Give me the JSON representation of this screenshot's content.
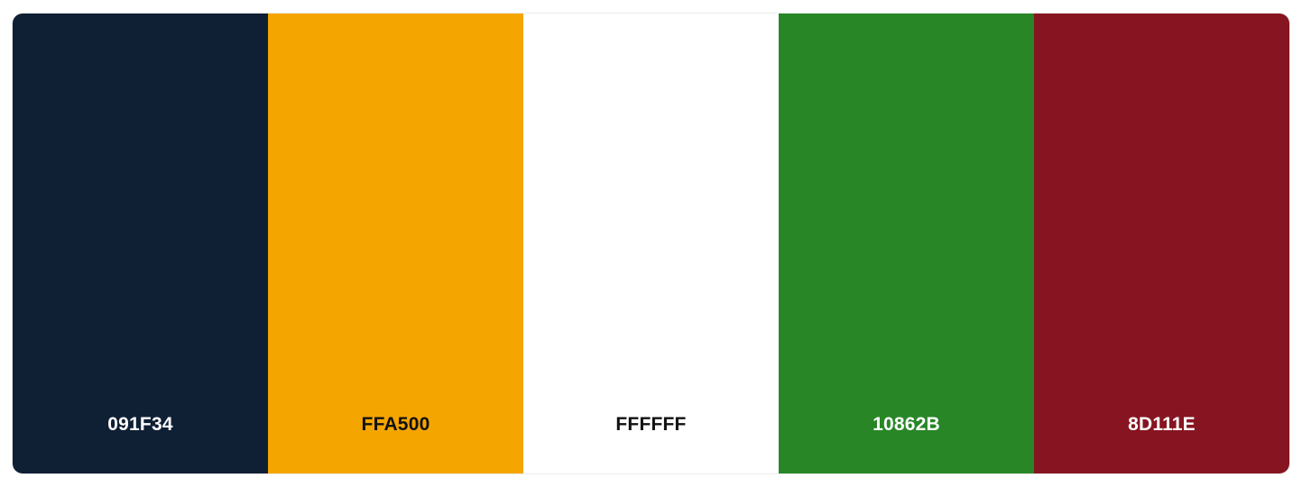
{
  "palette": {
    "swatches": [
      {
        "label": "091F34",
        "color": "#0F1F34",
        "text_color": "#ffffff"
      },
      {
        "label": "FFA500",
        "color": "#F5A500",
        "text_color": "#111111"
      },
      {
        "label": "FFFFFF",
        "color": "#FFFFFF",
        "text_color": "#111111"
      },
      {
        "label": "10862B",
        "color": "#288626",
        "text_color": "#ffffff"
      },
      {
        "label": "8D111E",
        "color": "#861521",
        "text_color": "#ffffff"
      }
    ]
  }
}
